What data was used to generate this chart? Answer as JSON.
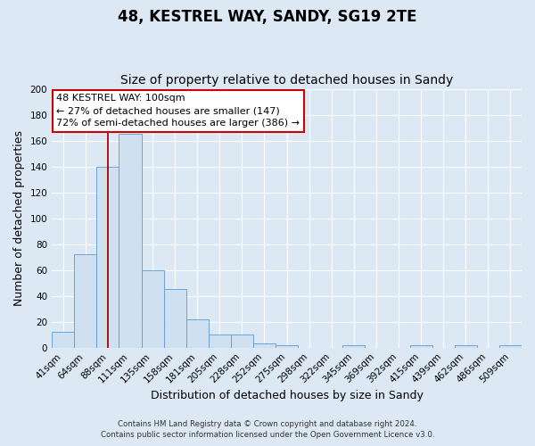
{
  "title": "48, KESTREL WAY, SANDY, SG19 2TE",
  "subtitle": "Size of property relative to detached houses in Sandy",
  "xlabel": "Distribution of detached houses by size in Sandy",
  "ylabel": "Number of detached properties",
  "footer_line1": "Contains HM Land Registry data © Crown copyright and database right 2024.",
  "footer_line2": "Contains public sector information licensed under the Open Government Licence v3.0.",
  "bin_labels": [
    "41sqm",
    "64sqm",
    "88sqm",
    "111sqm",
    "135sqm",
    "158sqm",
    "181sqm",
    "205sqm",
    "228sqm",
    "252sqm",
    "275sqm",
    "298sqm",
    "322sqm",
    "345sqm",
    "369sqm",
    "392sqm",
    "415sqm",
    "439sqm",
    "462sqm",
    "486sqm",
    "509sqm"
  ],
  "bar_heights": [
    12,
    72,
    140,
    165,
    60,
    45,
    22,
    10,
    10,
    3,
    2,
    0,
    0,
    2,
    0,
    0,
    2,
    0,
    2,
    0,
    2
  ],
  "bar_color": "#cfe0f0",
  "bar_edge_color": "#5b9bd5",
  "bin_edges": [
    41,
    64,
    88,
    111,
    135,
    158,
    181,
    205,
    228,
    252,
    275,
    298,
    322,
    345,
    369,
    392,
    415,
    439,
    462,
    486,
    509
  ],
  "property_size": 100,
  "annotation_title": "48 KESTREL WAY: 100sqm",
  "annotation_line1": "← 27% of detached houses are smaller (147)",
  "annotation_line2": "72% of semi-detached houses are larger (386) →",
  "annotation_box_color": "white",
  "annotation_box_edge_color": "#cc0000",
  "ylim": [
    0,
    200
  ],
  "yticks": [
    0,
    20,
    40,
    60,
    80,
    100,
    120,
    140,
    160,
    180,
    200
  ],
  "background_color": "#dce9f5",
  "plot_background_color": "#dce9f5",
  "grid_color": "white",
  "title_fontsize": 12,
  "subtitle_fontsize": 10,
  "axis_label_fontsize": 9,
  "tick_fontsize": 7.5,
  "annotation_fontsize": 8
}
